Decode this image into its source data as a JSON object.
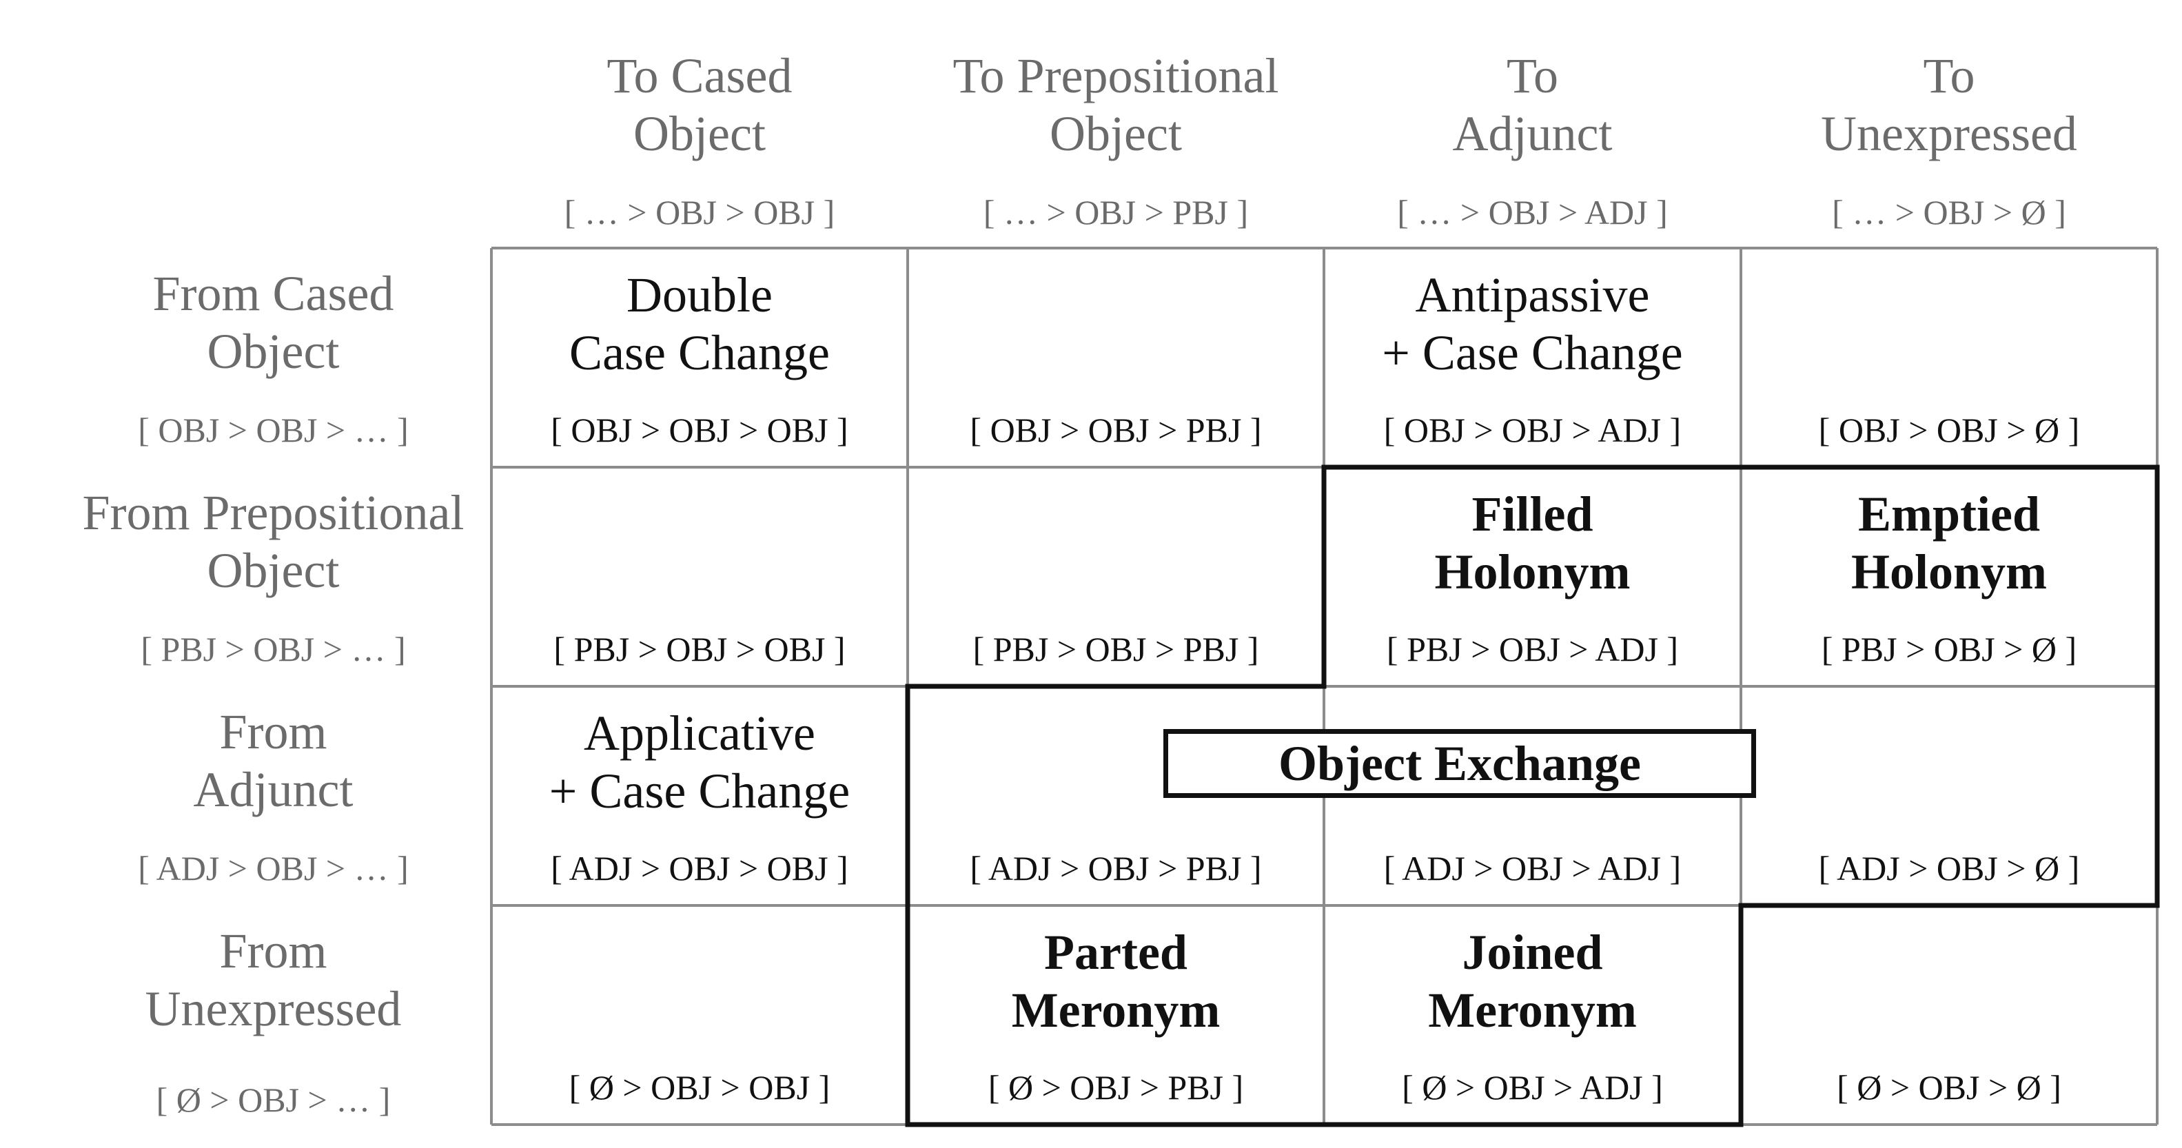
{
  "colors": {
    "header_text": "#6b6b6b",
    "body_text": "#111111",
    "grid_line": "#8c8c8c",
    "highlight_border": "#111111"
  },
  "columns": [
    {
      "title": [
        "To Cased",
        "Object"
      ],
      "pattern": "[ … > OBJ > OBJ ]"
    },
    {
      "title": [
        "To Prepositional",
        "Object"
      ],
      "pattern": "[ … > OBJ > PBJ ]"
    },
    {
      "title": [
        "To",
        "Adjunct"
      ],
      "pattern": "[ … > OBJ > ADJ ]"
    },
    {
      "title": [
        "To",
        "Unexpressed"
      ],
      "pattern": "[ … > OBJ > Ø ]"
    }
  ],
  "rows": [
    {
      "title": [
        "From Cased",
        "Object"
      ],
      "pattern": "[ OBJ > OBJ > … ]"
    },
    {
      "title": [
        "From Prepositional",
        "Object"
      ],
      "pattern": "[ PBJ > OBJ > … ]"
    },
    {
      "title": [
        "From",
        "Adjunct"
      ],
      "pattern": "[ ADJ > OBJ > … ]"
    },
    {
      "title": [
        "From",
        "Unexpressed"
      ],
      "pattern": "[ Ø > OBJ > … ]"
    }
  ],
  "cells": [
    [
      {
        "formula": "[ OBJ > OBJ > OBJ ]",
        "label": [
          "Double",
          "Case Change"
        ]
      },
      {
        "formula": "[ OBJ > OBJ > PBJ ]"
      },
      {
        "formula": "[ OBJ > OBJ > ADJ ]",
        "label": [
          "Antipassive",
          "+ Case Change"
        ]
      },
      {
        "formula": "[ OBJ > OBJ > Ø ]"
      }
    ],
    [
      {
        "formula": "[ PBJ > OBJ > OBJ ]"
      },
      {
        "formula": "[ PBJ > OBJ > PBJ ]"
      },
      {
        "formula": "[ PBJ > OBJ > ADJ ]",
        "label": [
          "Filled",
          "Holonym"
        ]
      },
      {
        "formula": "[ PBJ > OBJ > Ø ]",
        "label": [
          "Emptied",
          "Holonym"
        ]
      }
    ],
    [
      {
        "formula": "[ ADJ > OBJ > OBJ ]",
        "label": [
          "Applicative",
          "+ Case Change"
        ]
      },
      {
        "formula": "[ ADJ > OBJ > PBJ ]"
      },
      {
        "formula": "[ ADJ > OBJ > ADJ ]"
      },
      {
        "formula": "[ ADJ > OBJ > Ø ]"
      }
    ],
    [
      {
        "formula": "[ Ø > OBJ > OBJ ]"
      },
      {
        "formula": "[ Ø > OBJ > PBJ ]",
        "label": [
          "Parted",
          "Meronym"
        ]
      },
      {
        "formula": "[ Ø > OBJ > ADJ ]",
        "label": [
          "Joined",
          "Meronym"
        ]
      },
      {
        "formula": "[ Ø > OBJ > Ø ]"
      }
    ]
  ],
  "object_exchange_label": "Object Exchange"
}
